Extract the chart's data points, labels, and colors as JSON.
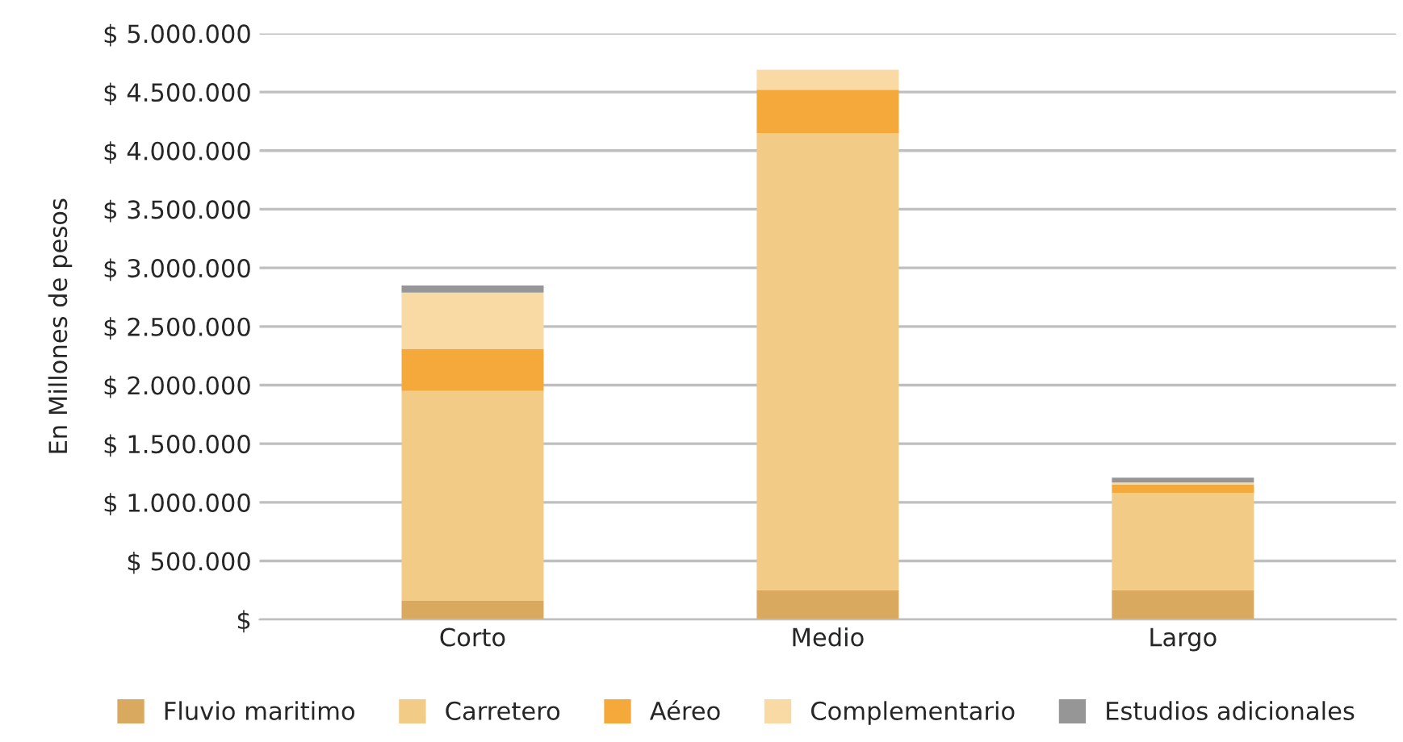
{
  "chart_data": {
    "type": "bar",
    "stacked": true,
    "ylabel": "En Millones de pesos",
    "categories": [
      "Corto",
      "Medio",
      "Largo"
    ],
    "series": [
      {
        "name": "Fluvio maritimo",
        "color": "#d9a95f",
        "values": [
          160000,
          250000,
          250000
        ]
      },
      {
        "name": "Carretero",
        "color": "#f2cb87",
        "values": [
          1790000,
          3900000,
          830000
        ]
      },
      {
        "name": "Aéreo",
        "color": "#f5a93b",
        "values": [
          360000,
          370000,
          70000
        ]
      },
      {
        "name": "Complementario",
        "color": "#f9d9a4",
        "values": [
          480000,
          170000,
          20000
        ]
      },
      {
        "name": "Estudios adicionales",
        "color": "#969696",
        "values": [
          60000,
          null,
          40000
        ]
      }
    ],
    "ylim": [
      0,
      5000000
    ],
    "yticks": [
      {
        "value": 0,
        "label": "$"
      },
      {
        "value": 500000,
        "label": "$ 500.000"
      },
      {
        "value": 1000000,
        "label": "$ 1.000.000"
      },
      {
        "value": 1500000,
        "label": "$ 1.500.000"
      },
      {
        "value": 2000000,
        "label": "$ 2.000.000"
      },
      {
        "value": 2500000,
        "label": "$ 2.500.000"
      },
      {
        "value": 3000000,
        "label": "$ 3.000.000"
      },
      {
        "value": 3500000,
        "label": "$ 3.500.000"
      },
      {
        "value": 4000000,
        "label": "$ 4.000.000"
      },
      {
        "value": 4500000,
        "label": "$ 4.500.000"
      },
      {
        "value": 5000000,
        "label": "$ 5.000.000"
      }
    ],
    "grid": "y",
    "legend": "bottom"
  }
}
